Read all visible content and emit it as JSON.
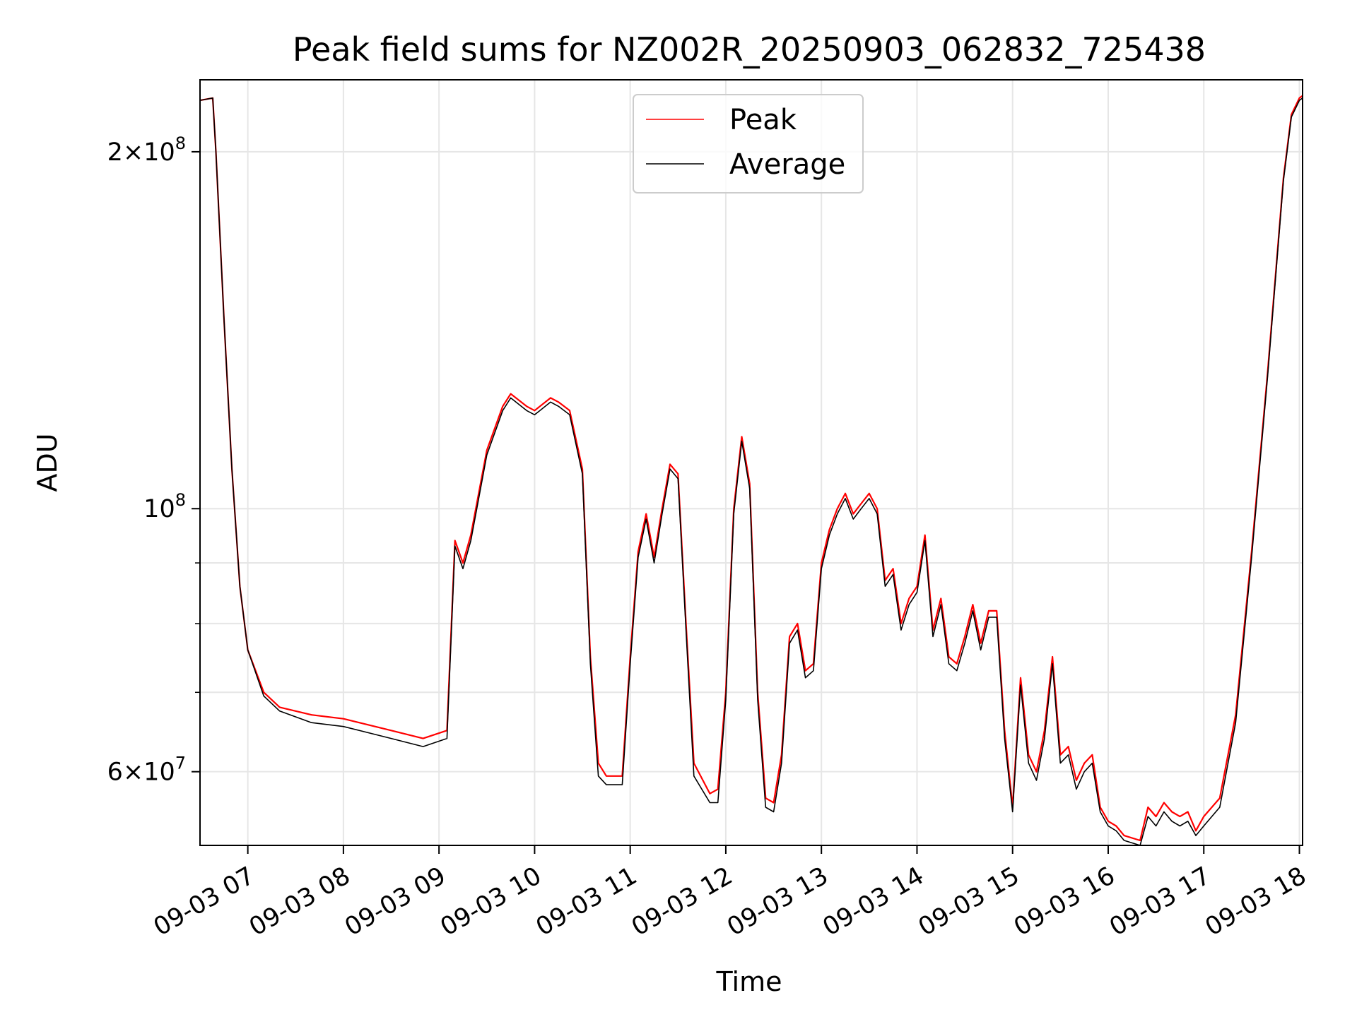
{
  "chart_data": {
    "type": "line",
    "title": "Peak field sums for NZ002R_20250903_062832_725438",
    "xlabel": "Time",
    "ylabel": "ADU",
    "y_scale": "log",
    "ylim": [
      52000000,
      230000000
    ],
    "xlim": [
      "2025-09-03 06:30",
      "2025-09-03 18:02"
    ],
    "grid": true,
    "legend_placement": "upper center",
    "x_ticks": [
      "09-03 07",
      "09-03 08",
      "09-03 09",
      "09-03 10",
      "09-03 11",
      "09-03 12",
      "09-03 13",
      "09-03 14",
      "09-03 15",
      "09-03 16",
      "09-03 17",
      "09-03 18"
    ],
    "y_ticks": [
      {
        "value": 200000000,
        "mantissa": "2",
        "exponent": "8"
      },
      {
        "value": 100000000,
        "mantissa": "",
        "exponent": "8"
      },
      {
        "value": 60000000,
        "mantissa": "6",
        "exponent": "7"
      }
    ],
    "y_minor_ticks": [
      70000000,
      80000000,
      90000000
    ],
    "series": [
      {
        "name": "Peak",
        "color": "#ff0000",
        "x": [
          "2025-09-03 06:30",
          "2025-09-03 06:38",
          "2025-09-03 06:40",
          "2025-09-03 06:45",
          "2025-09-03 06:50",
          "2025-09-03 06:55",
          "2025-09-03 07:00",
          "2025-09-03 07:10",
          "2025-09-03 07:20",
          "2025-09-03 07:40",
          "2025-09-03 08:00",
          "2025-09-03 08:30",
          "2025-09-03 08:50",
          "2025-09-03 09:05",
          "2025-09-03 09:10",
          "2025-09-03 09:15",
          "2025-09-03 09:20",
          "2025-09-03 09:30",
          "2025-09-03 09:40",
          "2025-09-03 09:45",
          "2025-09-03 09:55",
          "2025-09-03 10:00",
          "2025-09-03 10:10",
          "2025-09-03 10:15",
          "2025-09-03 10:22",
          "2025-09-03 10:30",
          "2025-09-03 10:35",
          "2025-09-03 10:40",
          "2025-09-03 10:45",
          "2025-09-03 10:55",
          "2025-09-03 11:00",
          "2025-09-03 11:05",
          "2025-09-03 11:10",
          "2025-09-03 11:15",
          "2025-09-03 11:20",
          "2025-09-03 11:25",
          "2025-09-03 11:30",
          "2025-09-03 11:35",
          "2025-09-03 11:40",
          "2025-09-03 11:50",
          "2025-09-03 11:55",
          "2025-09-03 12:00",
          "2025-09-03 12:05",
          "2025-09-03 12:10",
          "2025-09-03 12:15",
          "2025-09-03 12:20",
          "2025-09-03 12:25",
          "2025-09-03 12:30",
          "2025-09-03 12:35",
          "2025-09-03 12:40",
          "2025-09-03 12:45",
          "2025-09-03 12:50",
          "2025-09-03 12:55",
          "2025-09-03 13:00",
          "2025-09-03 13:05",
          "2025-09-03 13:10",
          "2025-09-03 13:15",
          "2025-09-03 13:20",
          "2025-09-03 13:25",
          "2025-09-03 13:30",
          "2025-09-03 13:35",
          "2025-09-03 13:40",
          "2025-09-03 13:45",
          "2025-09-03 13:50",
          "2025-09-03 13:55",
          "2025-09-03 14:00",
          "2025-09-03 14:05",
          "2025-09-03 14:10",
          "2025-09-03 14:15",
          "2025-09-03 14:20",
          "2025-09-03 14:25",
          "2025-09-03 14:30",
          "2025-09-03 14:35",
          "2025-09-03 14:40",
          "2025-09-03 14:45",
          "2025-09-03 14:50",
          "2025-09-03 14:55",
          "2025-09-03 15:00",
          "2025-09-03 15:05",
          "2025-09-03 15:10",
          "2025-09-03 15:15",
          "2025-09-03 15:20",
          "2025-09-03 15:25",
          "2025-09-03 15:30",
          "2025-09-03 15:35",
          "2025-09-03 15:40",
          "2025-09-03 15:45",
          "2025-09-03 15:50",
          "2025-09-03 15:55",
          "2025-09-03 16:00",
          "2025-09-03 16:05",
          "2025-09-03 16:10",
          "2025-09-03 16:20",
          "2025-09-03 16:25",
          "2025-09-03 16:30",
          "2025-09-03 16:35",
          "2025-09-03 16:40",
          "2025-09-03 16:45",
          "2025-09-03 16:50",
          "2025-09-03 16:55",
          "2025-09-03 17:00",
          "2025-09-03 17:10",
          "2025-09-03 17:20",
          "2025-09-03 17:30",
          "2025-09-03 17:40",
          "2025-09-03 17:50",
          "2025-09-03 17:55",
          "2025-09-03 18:00",
          "2025-09-03 18:02"
        ],
        "values": [
          221000000,
          222000000,
          200000000,
          145000000,
          108000000,
          86000000,
          76000000,
          70000000,
          68000000,
          67000000,
          66500000,
          65000000,
          64000000,
          65000000,
          94000000,
          90000000,
          95000000,
          112000000,
          122000000,
          125000000,
          122000000,
          121000000,
          124000000,
          123000000,
          121000000,
          108000000,
          75000000,
          61000000,
          59500000,
          59500000,
          75000000,
          92000000,
          99000000,
          91000000,
          100000000,
          109000000,
          107000000,
          80000000,
          61000000,
          57500000,
          58000000,
          70000000,
          100000000,
          115000000,
          105000000,
          70000000,
          57000000,
          56500000,
          62000000,
          78000000,
          80000000,
          73000000,
          74000000,
          90000000,
          96000000,
          100000000,
          103000000,
          99000000,
          101000000,
          103000000,
          100000000,
          87000000,
          89000000,
          80000000,
          84000000,
          86000000,
          95000000,
          79000000,
          84000000,
          75000000,
          74000000,
          78000000,
          83000000,
          77000000,
          82000000,
          82000000,
          65000000,
          56000000,
          72000000,
          62000000,
          60000000,
          65000000,
          75000000,
          62000000,
          63000000,
          59000000,
          61000000,
          62000000,
          56000000,
          54500000,
          54000000,
          53000000,
          52500000,
          56000000,
          55000000,
          56500000,
          55500000,
          55000000,
          55500000,
          53500000,
          55000000,
          57000000,
          67000000,
          92000000,
          130000000,
          190000000,
          215000000,
          222000000,
          223000000
        ]
      },
      {
        "name": "Average",
        "color": "#000000",
        "x": [
          "2025-09-03 06:30",
          "2025-09-03 06:38",
          "2025-09-03 06:40",
          "2025-09-03 06:45",
          "2025-09-03 06:50",
          "2025-09-03 06:55",
          "2025-09-03 07:00",
          "2025-09-03 07:10",
          "2025-09-03 07:20",
          "2025-09-03 07:40",
          "2025-09-03 08:00",
          "2025-09-03 08:30",
          "2025-09-03 08:50",
          "2025-09-03 09:05",
          "2025-09-03 09:10",
          "2025-09-03 09:15",
          "2025-09-03 09:20",
          "2025-09-03 09:30",
          "2025-09-03 09:40",
          "2025-09-03 09:45",
          "2025-09-03 09:55",
          "2025-09-03 10:00",
          "2025-09-03 10:10",
          "2025-09-03 10:15",
          "2025-09-03 10:22",
          "2025-09-03 10:30",
          "2025-09-03 10:35",
          "2025-09-03 10:40",
          "2025-09-03 10:45",
          "2025-09-03 10:55",
          "2025-09-03 11:00",
          "2025-09-03 11:05",
          "2025-09-03 11:10",
          "2025-09-03 11:15",
          "2025-09-03 11:20",
          "2025-09-03 11:25",
          "2025-09-03 11:30",
          "2025-09-03 11:35",
          "2025-09-03 11:40",
          "2025-09-03 11:50",
          "2025-09-03 11:55",
          "2025-09-03 12:00",
          "2025-09-03 12:05",
          "2025-09-03 12:10",
          "2025-09-03 12:15",
          "2025-09-03 12:20",
          "2025-09-03 12:25",
          "2025-09-03 12:30",
          "2025-09-03 12:35",
          "2025-09-03 12:40",
          "2025-09-03 12:45",
          "2025-09-03 12:50",
          "2025-09-03 12:55",
          "2025-09-03 13:00",
          "2025-09-03 13:05",
          "2025-09-03 13:10",
          "2025-09-03 13:15",
          "2025-09-03 13:20",
          "2025-09-03 13:25",
          "2025-09-03 13:30",
          "2025-09-03 13:35",
          "2025-09-03 13:40",
          "2025-09-03 13:45",
          "2025-09-03 13:50",
          "2025-09-03 13:55",
          "2025-09-03 14:00",
          "2025-09-03 14:05",
          "2025-09-03 14:10",
          "2025-09-03 14:15",
          "2025-09-03 14:20",
          "2025-09-03 14:25",
          "2025-09-03 14:30",
          "2025-09-03 14:35",
          "2025-09-03 14:40",
          "2025-09-03 14:45",
          "2025-09-03 14:50",
          "2025-09-03 14:55",
          "2025-09-03 15:00",
          "2025-09-03 15:05",
          "2025-09-03 15:10",
          "2025-09-03 15:15",
          "2025-09-03 15:20",
          "2025-09-03 15:25",
          "2025-09-03 15:30",
          "2025-09-03 15:35",
          "2025-09-03 15:40",
          "2025-09-03 15:45",
          "2025-09-03 15:50",
          "2025-09-03 15:55",
          "2025-09-03 16:00",
          "2025-09-03 16:05",
          "2025-09-03 16:10",
          "2025-09-03 16:20",
          "2025-09-03 16:25",
          "2025-09-03 16:30",
          "2025-09-03 16:35",
          "2025-09-03 16:40",
          "2025-09-03 16:45",
          "2025-09-03 16:50",
          "2025-09-03 16:55",
          "2025-09-03 17:00",
          "2025-09-03 17:10",
          "2025-09-03 17:20",
          "2025-09-03 17:30",
          "2025-09-03 17:40",
          "2025-09-03 17:50",
          "2025-09-03 17:55",
          "2025-09-03 18:00",
          "2025-09-03 18:02"
        ],
        "values": [
          221000000,
          222000000,
          200000000,
          145000000,
          108000000,
          86000000,
          76000000,
          69500000,
          67500000,
          66000000,
          65500000,
          64000000,
          63000000,
          64000000,
          93000000,
          89000000,
          94000000,
          111000000,
          121000000,
          124000000,
          121000000,
          120000000,
          123000000,
          122000000,
          120000000,
          107000000,
          74000000,
          59500000,
          58500000,
          58500000,
          74000000,
          91000000,
          98000000,
          90000000,
          99000000,
          108000000,
          106000000,
          79000000,
          59500000,
          56500000,
          56500000,
          69000000,
          99000000,
          114000000,
          104000000,
          69000000,
          56000000,
          55500000,
          61000000,
          77000000,
          79000000,
          72000000,
          73000000,
          89000000,
          95000000,
          99000000,
          102000000,
          98000000,
          100000000,
          102000000,
          99000000,
          86000000,
          88000000,
          79000000,
          83000000,
          85000000,
          94000000,
          78000000,
          83000000,
          74000000,
          73000000,
          77000000,
          82000000,
          76000000,
          81000000,
          81000000,
          64000000,
          55500000,
          71000000,
          61000000,
          59000000,
          64000000,
          74000000,
          61000000,
          62000000,
          58000000,
          60000000,
          61000000,
          55500000,
          54000000,
          53500000,
          52500000,
          52000000,
          55000000,
          54000000,
          55500000,
          54500000,
          54000000,
          54500000,
          53000000,
          54000000,
          56000000,
          66000000,
          91000000,
          129000000,
          189000000,
          214000000,
          221000000,
          222000000
        ]
      }
    ]
  }
}
